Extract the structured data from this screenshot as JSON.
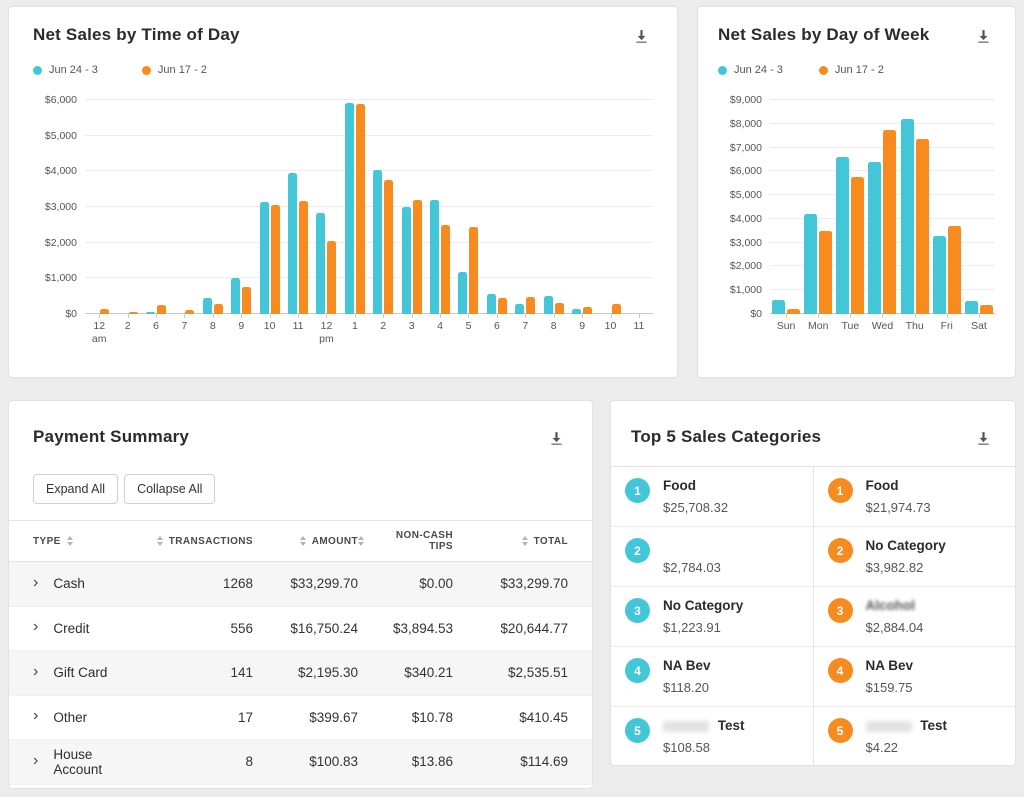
{
  "chart_data": [
    {
      "type": "bar",
      "title": "Net Sales by Time of Day",
      "categories": [
        "12\nam",
        "2",
        "6",
        "7",
        "8",
        "9",
        "10",
        "11",
        "12\npm",
        "1",
        "2",
        "3",
        "4",
        "5",
        "6",
        "7",
        "8",
        "9",
        "10",
        "11"
      ],
      "series": [
        {
          "name": "Jun 24 - 3",
          "color": "#43c6d8",
          "values": [
            0,
            0,
            50,
            0,
            450,
            1000,
            3150,
            3950,
            2830,
            5920,
            4050,
            3000,
            3200,
            1190,
            550,
            270,
            500,
            130,
            0,
            0
          ]
        },
        {
          "name": "Jun 17 - 2",
          "color": "#f78b1f",
          "values": [
            150,
            50,
            250,
            100,
            280,
            750,
            3050,
            3180,
            2050,
            5890,
            3760,
            3200,
            2500,
            2450,
            450,
            480,
            300,
            200,
            280,
            0
          ]
        }
      ],
      "xlabel": "",
      "ylabel": "",
      "ylim": [
        0,
        6000
      ],
      "ytick_step": 1000,
      "ytick_prefix": "$",
      "grid": true,
      "legend_position": "top-left"
    },
    {
      "type": "bar",
      "title": "Net Sales by Day of Week",
      "categories": [
        "Sun",
        "Mon",
        "Tue",
        "Wed",
        "Thu",
        "Fri",
        "Sat"
      ],
      "series": [
        {
          "name": "Jun 24 - 3",
          "color": "#43c6d8",
          "values": [
            600,
            4200,
            6600,
            6400,
            8200,
            3300,
            550
          ]
        },
        {
          "name": "Jun 17 - 2",
          "color": "#f78b1f",
          "values": [
            200,
            3500,
            5750,
            7750,
            7350,
            3700,
            400
          ]
        }
      ],
      "xlabel": "",
      "ylabel": "",
      "ylim": [
        0,
        9000
      ],
      "ytick_step": 1000,
      "ytick_prefix": "$",
      "grid": true,
      "legend_position": "top-left"
    }
  ],
  "payment_summary": {
    "title": "Payment Summary",
    "buttons": [
      "Expand All",
      "Collapse All"
    ],
    "columns": [
      "TYPE",
      "TRANSACTIONS",
      "AMOUNT",
      "NON-CASH TIPS",
      "TOTAL"
    ],
    "rows": [
      {
        "type": "Cash",
        "transactions": "1268",
        "amount": "$33,299.70",
        "non_cash_tips": "$0.00",
        "total": "$33,299.70"
      },
      {
        "type": "Credit",
        "transactions": "556",
        "amount": "$16,750.24",
        "non_cash_tips": "$3,894.53",
        "total": "$20,644.77"
      },
      {
        "type": "Gift Card",
        "transactions": "141",
        "amount": "$2,195.30",
        "non_cash_tips": "$340.21",
        "total": "$2,535.51"
      },
      {
        "type": "Other",
        "transactions": "17",
        "amount": "$399.67",
        "non_cash_tips": "$10.78",
        "total": "$410.45"
      },
      {
        "type": "House Account",
        "transactions": "8",
        "amount": "$100.83",
        "non_cash_tips": "$13.86",
        "total": "$114.69"
      }
    ]
  },
  "top_categories": {
    "title": "Top 5 Sales Categories",
    "columns": [
      {
        "color": "#43c6d8",
        "items": [
          {
            "rank": "1",
            "label": "Food",
            "amount": "$25,708.32"
          },
          {
            "rank": "2",
            "label": "",
            "amount": "$2,784.03",
            "redacted": "label"
          },
          {
            "rank": "3",
            "label": "No Category",
            "amount": "$1,223.91"
          },
          {
            "rank": "4",
            "label": "NA Bev",
            "amount": "$118.20"
          },
          {
            "rank": "5",
            "label": "Test",
            "amount": "$108.58",
            "redacted": "prefix"
          }
        ]
      },
      {
        "color": "#f78b1f",
        "items": [
          {
            "rank": "1",
            "label": "Food",
            "amount": "$21,974.73"
          },
          {
            "rank": "2",
            "label": "No Category",
            "amount": "$3,982.82"
          },
          {
            "rank": "3",
            "label": "Alcohol",
            "amount": "$2,884.04",
            "redacted": "blur"
          },
          {
            "rank": "4",
            "label": "NA Bev",
            "amount": "$159.75"
          },
          {
            "rank": "5",
            "label": "Test",
            "amount": "$4.22",
            "redacted": "prefix"
          }
        ]
      }
    ]
  }
}
